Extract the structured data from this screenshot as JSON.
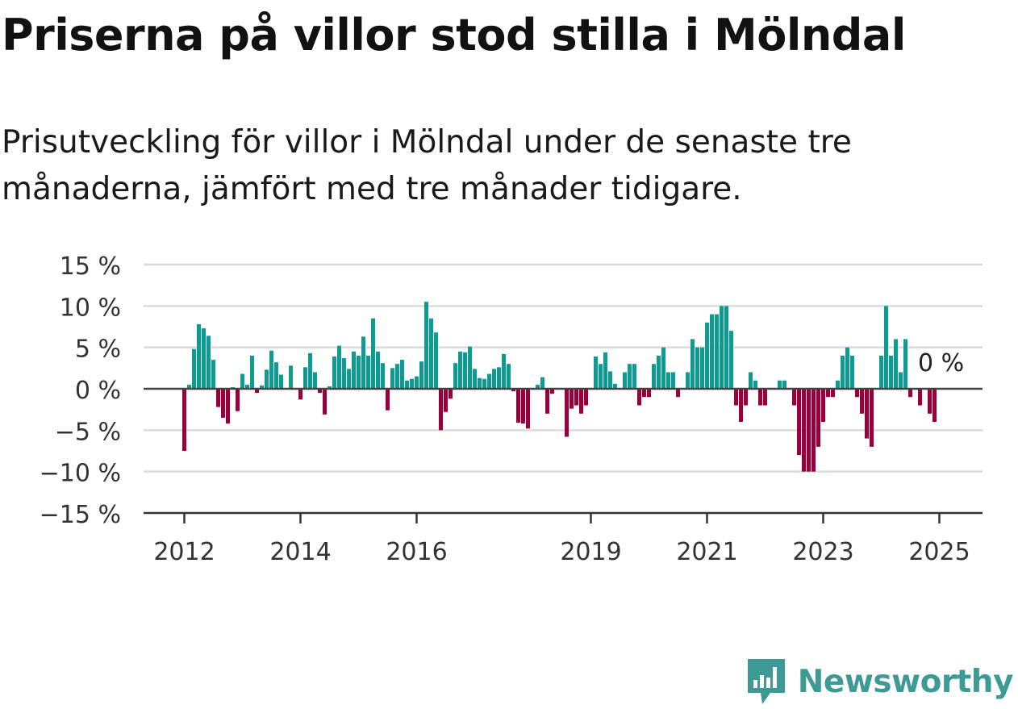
{
  "header": {
    "title": "Priserna på villor stod stilla i Mölndal",
    "subtitle": "Prisutveckling för villor i Mölndal under de senaste tre månaderna, jämfört med tre månader tidigare."
  },
  "brand": {
    "name": "Newsworthy",
    "icon": "newsworthy-logo-icon",
    "color": "#3e9a95"
  },
  "chart_data": {
    "type": "bar",
    "ylim": [
      -15,
      15
    ],
    "yticks": [
      15,
      10,
      5,
      0,
      -5,
      -10,
      -15
    ],
    "ytick_labels": [
      "15 %",
      "10 %",
      "5 %",
      "0 %",
      "−5 %",
      "−10 %",
      "−15 %"
    ],
    "x_tick_labels": [
      {
        "label": "2012",
        "index": 0
      },
      {
        "label": "2014",
        "index": 24
      },
      {
        "label": "2016",
        "index": 48
      },
      {
        "label": "2019",
        "index": 84
      },
      {
        "label": "2021",
        "index": 108
      },
      {
        "label": "2023",
        "index": 132
      },
      {
        "label": "2025",
        "index": 156
      }
    ],
    "grid": true,
    "colors": {
      "positive": "#0f9a92",
      "negative": "#96003c"
    },
    "annotation": {
      "text": "0 %",
      "index": 158
    },
    "series": [
      {
        "start": "2012-01",
        "values": [
          -7.5,
          0.5,
          4.8,
          7.8,
          7.3,
          6.4,
          3.5,
          -2.2,
          -3.5,
          -4.2,
          0.2,
          -2.7,
          1.8,
          0.5,
          4.0,
          -0.5,
          0.4,
          2.3,
          4.6,
          3.2,
          1.7,
          0,
          2.8,
          0,
          -1.3,
          2.6,
          4.3,
          2.0,
          -0.5,
          -3.1,
          0.3,
          3.9,
          5.2,
          3.7,
          2.4,
          4.5,
          4.0,
          6.3,
          4.0,
          8.5,
          4.5,
          3.1,
          -2.6,
          2.5,
          3.0,
          3.5,
          1.0,
          1.2,
          1.5,
          3.3,
          10.5,
          8.5,
          6.8,
          -5.0,
          -2.8,
          -1.2,
          3.1,
          4.5,
          4.4,
          5.1,
          2.4,
          1.3,
          1.2,
          1.8,
          2.4,
          2.6,
          4.2,
          3.0,
          -0.3,
          -4.1,
          -4.2,
          -4.8,
          0,
          0.5,
          1.4,
          -3.0,
          -0.6,
          0,
          0,
          -5.8,
          -2.4,
          -2.0,
          -3.0,
          -2.0,
          0,
          3.9,
          3.0,
          4.4,
          2.1,
          0.6,
          0,
          2.0,
          3.0,
          3.0,
          -2.0,
          -1.0,
          -1.0,
          3.0,
          4.0,
          5.0,
          2.0,
          2.0,
          -1.0,
          0,
          2.0,
          6.0,
          5.0,
          5.0,
          8.0,
          9.0,
          9.0,
          10.0,
          10.0,
          7.0,
          -2.0,
          -4.0,
          -2.0,
          2.0,
          1.0,
          -2.0,
          -2.0,
          0,
          0,
          1.0,
          1.0,
          0,
          -2.0,
          -8.0,
          -10.0,
          -10.0,
          -10.0,
          -7.0,
          -4.0,
          -1.0,
          -1.0,
          1.0,
          4.0,
          5.0,
          4.0,
          -1.0,
          -3.0,
          -6.0,
          -7.0,
          0,
          4.0,
          10.0,
          4.0,
          6.0,
          2.0,
          6.0,
          -1.0,
          0,
          -2.0,
          0,
          -3.0,
          -4.0,
          0
        ]
      }
    ]
  }
}
